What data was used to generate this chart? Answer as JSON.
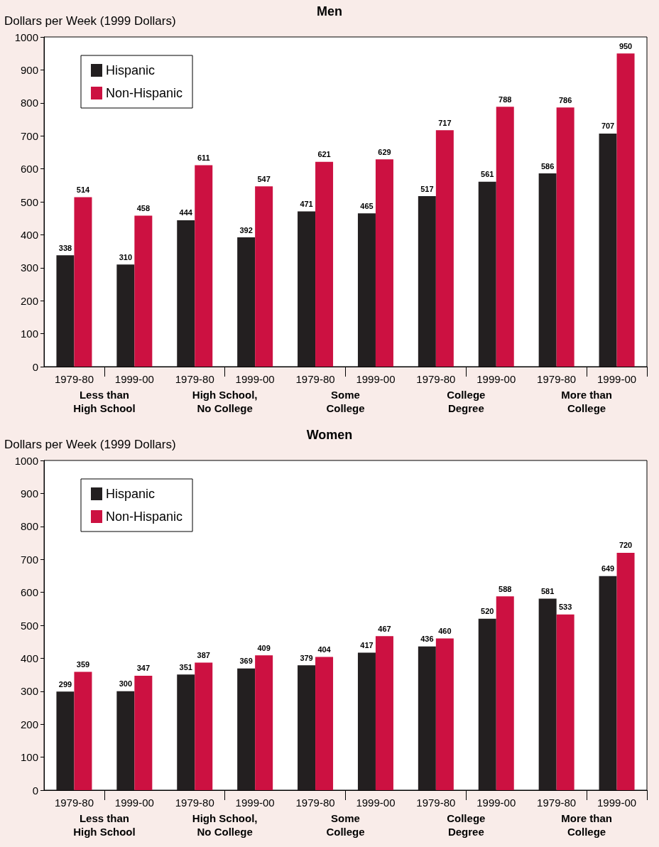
{
  "chart_data": [
    {
      "type": "bar",
      "title": "Men",
      "ylabel": "Dollars per Week (1999 Dollars)",
      "categories": [
        "1979-80",
        "1999-00",
        "1979-80",
        "1999-00",
        "1979-80",
        "1999-00",
        "1979-80",
        "1999-00",
        "1979-80",
        "1999-00"
      ],
      "series": [
        {
          "name": "Hispanic",
          "color": "#231f20",
          "values": [
            338,
            310,
            444,
            392,
            471,
            465,
            517,
            561,
            586,
            707
          ]
        },
        {
          "name": "Non-Hispanic",
          "color": "#cc1141",
          "values": [
            514,
            458,
            611,
            547,
            621,
            629,
            717,
            788,
            786,
            950
          ]
        }
      ],
      "annotations": [
        "Less than\nHigh School",
        "High School,\nNo College",
        "Some\nCollege",
        "College\nDegree",
        "More than\nCollege"
      ],
      "ylim": [
        0,
        1000
      ],
      "yticks": [
        0,
        100,
        200,
        300,
        400,
        500,
        600,
        700,
        800,
        900,
        1000
      ],
      "grid": false,
      "legend": "top left",
      "data_labels": true
    },
    {
      "type": "bar",
      "title": "Women",
      "ylabel": "Dollars per Week (1999 Dollars)",
      "categories": [
        "1979-80",
        "1999-00",
        "1979-80",
        "1999-00",
        "1979-80",
        "1999-00",
        "1979-80",
        "1999-00",
        "1979-80",
        "1999-00"
      ],
      "series": [
        {
          "name": "Hispanic",
          "color": "#231f20",
          "values": [
            299,
            300,
            351,
            369,
            379,
            417,
            436,
            520,
            581,
            649
          ]
        },
        {
          "name": "Non-Hispanic",
          "color": "#cc1141",
          "values": [
            359,
            347,
            387,
            409,
            404,
            467,
            460,
            588,
            533,
            720
          ]
        }
      ],
      "annotations": [
        "Less than\nHigh School",
        "High School,\nNo College",
        "Some\nCollege",
        "College\nDegree",
        "More than\nCollege"
      ],
      "ylim": [
        0,
        1000
      ],
      "yticks": [
        0,
        100,
        200,
        300,
        400,
        500,
        600,
        700,
        800,
        900,
        1000
      ],
      "grid": false,
      "legend": "top left",
      "data_labels": true
    }
  ]
}
